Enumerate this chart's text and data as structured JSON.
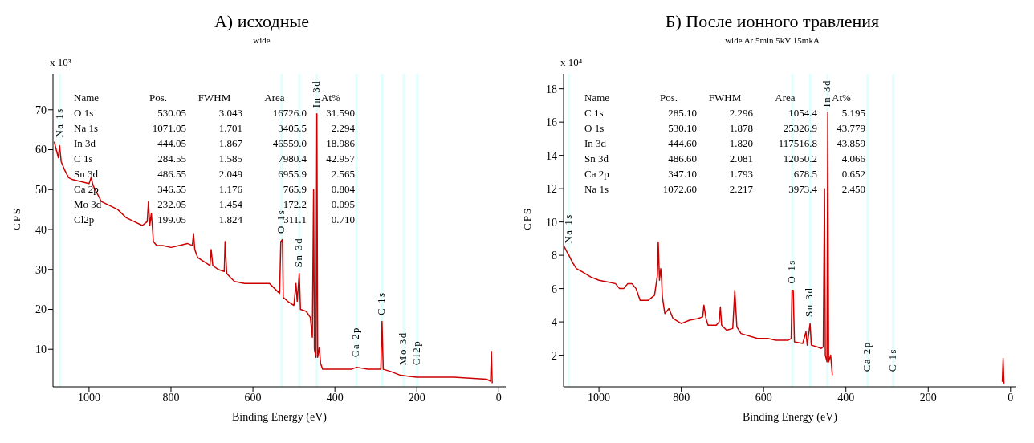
{
  "chart_data": [
    {
      "type": "line",
      "title": "А) исходные",
      "subtitle": "wide",
      "xlabel": "Binding Energy (eV)",
      "ylabel": "CPS",
      "xlim": [
        1088,
        -17
      ],
      "xticks": [
        1000,
        800,
        600,
        400,
        200,
        0
      ],
      "ylim": [
        0.6,
        79
      ],
      "yticks": [
        10,
        20,
        30,
        40,
        50,
        60,
        70
      ],
      "x": [
        1085,
        1080,
        1075,
        1072,
        1068,
        1060,
        1050,
        1040,
        1020,
        1000,
        995,
        990,
        980,
        970,
        950,
        930,
        910,
        890,
        870,
        858,
        855,
        852,
        848,
        845,
        843,
        835,
        820,
        800,
        780,
        760,
        748,
        745,
        742,
        735,
        720,
        705,
        702,
        698,
        685,
        670,
        668,
        664,
        655,
        645,
        620,
        600,
        580,
        560,
        545,
        535,
        532,
        528,
        526,
        515,
        500,
        495,
        492,
        487,
        484,
        470,
        460,
        455,
        452,
        450,
        446,
        444,
        442,
        438,
        435,
        430,
        400,
        360,
        347,
        320,
        300,
        288,
        285,
        282,
        265,
        240,
        200,
        150,
        110,
        30,
        20,
        18,
        16
      ],
      "series": [
        {
          "color": "#cc0000",
          "values": [
            62,
            60,
            58,
            61,
            57,
            55,
            53,
            52.5,
            52,
            51.5,
            53,
            51,
            49,
            47,
            46,
            45,
            43,
            42,
            41,
            42,
            47,
            41,
            44,
            40,
            37,
            36,
            36,
            35.5,
            36,
            36.5,
            36,
            39,
            35,
            33,
            32,
            31,
            35,
            31,
            30,
            29.5,
            37,
            29,
            28,
            27,
            26.5,
            26.5,
            26.5,
            26.5,
            25,
            24,
            37,
            37.5,
            23,
            22,
            21,
            26.5,
            22,
            29,
            20,
            19.5,
            18,
            13,
            50,
            10,
            8,
            69,
            8,
            10.5,
            6.5,
            5,
            5,
            5,
            5.5,
            5,
            5,
            5,
            17,
            5,
            4.5,
            3.5,
            3,
            3,
            3,
            2.5,
            2,
            9.5,
            1.5
          ]
        }
      ],
      "bands": [
        {
          "axis": "x",
          "from": 1068,
          "to": 1074,
          "color": "#e0ffff"
        },
        {
          "axis": "x",
          "from": 527,
          "to": 533,
          "color": "#e0ffff"
        },
        {
          "axis": "x",
          "from": 484,
          "to": 490,
          "color": "#e0ffff"
        },
        {
          "axis": "x",
          "from": 441,
          "to": 447,
          "color": "#e0ffff"
        },
        {
          "axis": "x",
          "from": 344,
          "to": 350,
          "color": "#e0ffff"
        },
        {
          "axis": "x",
          "from": 282,
          "to": 288,
          "color": "#e0ffff"
        },
        {
          "axis": "x",
          "from": 229,
          "to": 235,
          "color": "#e0ffff"
        },
        {
          "axis": "x",
          "from": 196,
          "to": 202,
          "color": "#e0ffff"
        }
      ],
      "annotations": [
        "x 10³",
        "Name\tPos.\tFWHM\tArea\tAt%",
        "O 1s\t530.05\t3.043\t16726.0\t31.590",
        "Na 1s\t1071.05\t1.701\t3405.5\t2.294",
        "In 3d\t444.05\t1.867\t46559.0\t18.986",
        "C 1s\t284.55\t1.585\t7980.4\t42.957",
        "Sn 3d\t486.55\t2.049\t6955.9\t2.565",
        "Ca 2p\t346.55\t1.176\t765.9\t0.804",
        "Mo 3d\t232.05\t1.454\t172.2\t0.095",
        "Cl2p\t199.05\t1.824\t311.1\t0.710",
        {
          "text": "Na 1s",
          "x": 1071,
          "y": 63
        },
        {
          "text": "O 1s",
          "x": 530,
          "y": 39
        },
        {
          "text": "Sn 3d",
          "x": 487,
          "y": 30.5
        },
        {
          "text": "In 3d",
          "x": 444,
          "y": 70.5
        },
        {
          "text": "Ca 2p",
          "x": 347,
          "y": 8
        },
        {
          "text": "C 1s",
          "x": 285,
          "y": 18.5
        },
        {
          "text": "Mo 3d",
          "x": 232,
          "y": 6
        },
        {
          "text": "Cl2p",
          "x": 199,
          "y": 6
        }
      ]
    },
    {
      "type": "line",
      "title": "Б) После ионного травления",
      "subtitle": "wide Ar 5min 5kV 15mkA",
      "xlabel": "Binding Energy (eV)",
      "ylabel": "CPS",
      "xlim": [
        1086,
        -14
      ],
      "xticks": [
        1000,
        800,
        600,
        400,
        200,
        0
      ],
      "ylim": [
        0.1,
        18.9
      ],
      "yticks": [
        2,
        4,
        6,
        8,
        10,
        12,
        14,
        16,
        18
      ],
      "x": [
        1086,
        1080,
        1073,
        1065,
        1055,
        1040,
        1020,
        1000,
        980,
        960,
        950,
        940,
        930,
        920,
        910,
        900,
        880,
        865,
        858,
        856,
        853,
        850,
        848,
        846,
        840,
        830,
        820,
        800,
        780,
        760,
        748,
        745,
        740,
        735,
        715,
        708,
        705,
        702,
        690,
        675,
        670,
        665,
        655,
        615,
        590,
        570,
        540,
        533,
        531,
        528,
        525,
        505,
        497,
        494,
        487,
        484,
        470,
        460,
        455,
        452,
        450,
        446,
        444,
        442,
        437,
        433,
        300,
        20,
        18,
        16
      ],
      "series": [
        {
          "color": "#cc0000",
          "values": [
            8.6,
            8.3,
            8.0,
            7.6,
            7.2,
            7.0,
            6.7,
            6.5,
            6.4,
            6.3,
            6.0,
            6.0,
            6.3,
            6.3,
            6.0,
            5.3,
            5.3,
            5.6,
            6.8,
            8.8,
            6.5,
            7.2,
            6.6,
            5.5,
            4.5,
            4.8,
            4.2,
            3.9,
            4.1,
            4.2,
            4.3,
            5.0,
            4.2,
            3.8,
            3.8,
            4.0,
            4.9,
            3.8,
            3.5,
            3.6,
            5.9,
            3.7,
            3.3,
            3.0,
            3.0,
            2.9,
            2.9,
            3.0,
            5.9,
            5.9,
            2.8,
            2.7,
            3.4,
            2.6,
            3.9,
            2.6,
            2.5,
            2.4,
            2.5,
            12.0,
            2.0,
            1.6,
            16.6,
            1.6,
            2.0,
            0.8,
            null,
            0.4,
            1.8,
            0.3
          ]
        }
      ],
      "bands": [
        {
          "axis": "x",
          "from": 1070,
          "to": 1076,
          "color": "#e0ffff"
        },
        {
          "axis": "x",
          "from": 527,
          "to": 533,
          "color": "#e0ffff"
        },
        {
          "axis": "x",
          "from": 484,
          "to": 490,
          "color": "#e0ffff"
        },
        {
          "axis": "x",
          "from": 442,
          "to": 448,
          "color": "#e0ffff"
        },
        {
          "axis": "x",
          "from": 344,
          "to": 350,
          "color": "#e0ffff"
        },
        {
          "axis": "x",
          "from": 282,
          "to": 288,
          "color": "#e0ffff"
        }
      ],
      "annotations": [
        "x 10⁴",
        "Name\tPos.\tFWHM\tArea\tAt%",
        "C 1s\t285.10\t2.296\t1054.4\t5.195",
        "O 1s\t530.10\t1.878\t25326.9\t43.779",
        "In 3d\t444.60\t1.820\t117516.8\t43.859",
        "Sn 3d\t486.60\t2.081\t12050.2\t4.066",
        "Ca 2p\t347.10\t1.793\t678.5\t0.652",
        "Na 1s\t1072.60\t2.217\t3973.4\t2.450",
        {
          "text": "Na 1s",
          "x": 1073,
          "y": 8.7
        },
        {
          "text": "O 1s",
          "x": 530,
          "y": 6.3
        },
        {
          "text": "Sn 3d",
          "x": 487,
          "y": 4.3
        },
        {
          "text": "In 3d",
          "x": 445,
          "y": 16.9
        },
        {
          "text": "Ca 2p",
          "x": 347,
          "y": 1
        },
        {
          "text": "C 1s",
          "x": 285,
          "y": 1
        }
      ]
    }
  ]
}
